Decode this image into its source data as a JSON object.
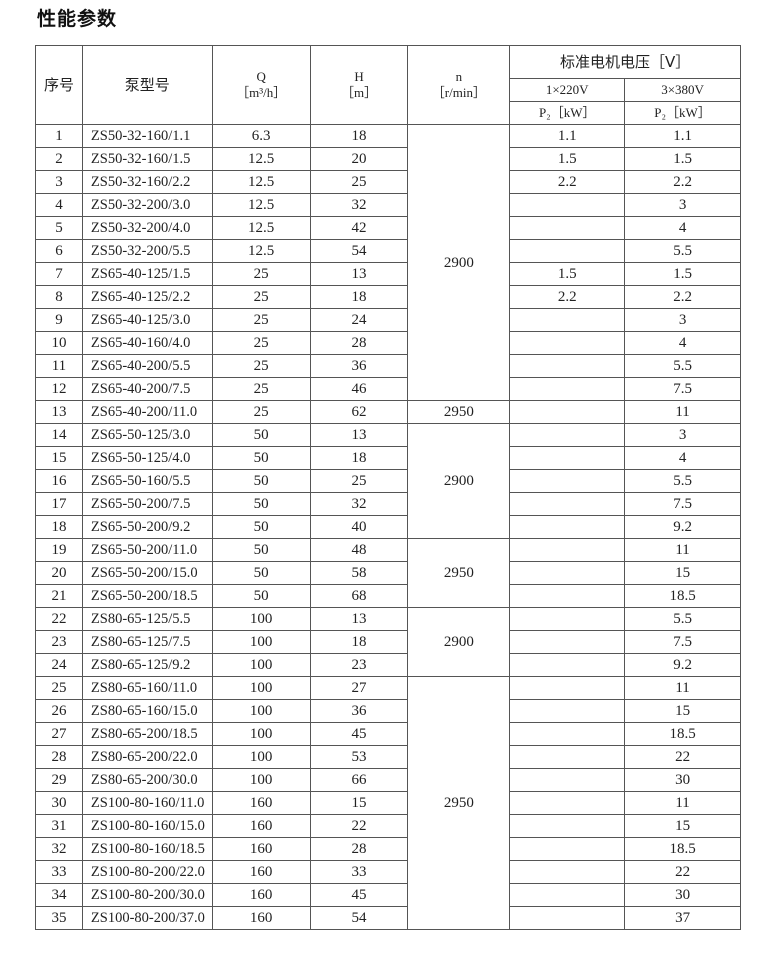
{
  "title": "性能参数",
  "headers": {
    "seq": "序号",
    "model": "泵型号",
    "q": "Q",
    "q_unit": "［m³/h］",
    "h": "H",
    "h_unit": "［m］",
    "n": "n",
    "n_unit": "［r/min］",
    "voltage": "标准电机电压［V］",
    "v1": "1×220V",
    "v3": "3×380V",
    "p1": "P₂［kW］",
    "p3": "P₂［kW］"
  },
  "n_groups": [
    {
      "value": "2900",
      "rows": 12
    },
    {
      "value": "2950",
      "rows": 1
    },
    {
      "value": "2900",
      "rows": 5
    },
    {
      "value": "2950",
      "rows": 3
    },
    {
      "value": "2900",
      "rows": 3
    },
    {
      "value": "2950",
      "rows": 11
    }
  ],
  "rows": [
    [
      "1",
      "ZS50-32-160/1.1",
      "6.3",
      "18",
      "1.1",
      "1.1"
    ],
    [
      "2",
      "ZS50-32-160/1.5",
      "12.5",
      "20",
      "1.5",
      "1.5"
    ],
    [
      "3",
      "ZS50-32-160/2.2",
      "12.5",
      "25",
      "2.2",
      "2.2"
    ],
    [
      "4",
      "ZS50-32-200/3.0",
      "12.5",
      "32",
      "",
      "3"
    ],
    [
      "5",
      "ZS50-32-200/4.0",
      "12.5",
      "42",
      "",
      "4"
    ],
    [
      "6",
      "ZS50-32-200/5.5",
      "12.5",
      "54",
      "",
      "5.5"
    ],
    [
      "7",
      "ZS65-40-125/1.5",
      "25",
      "13",
      "1.5",
      "1.5"
    ],
    [
      "8",
      "ZS65-40-125/2.2",
      "25",
      "18",
      "2.2",
      "2.2"
    ],
    [
      "9",
      "ZS65-40-125/3.0",
      "25",
      "24",
      "",
      "3"
    ],
    [
      "10",
      "ZS65-40-160/4.0",
      "25",
      "28",
      "",
      "4"
    ],
    [
      "11",
      "ZS65-40-200/5.5",
      "25",
      "36",
      "",
      "5.5"
    ],
    [
      "12",
      "ZS65-40-200/7.5",
      "25",
      "46",
      "",
      "7.5"
    ],
    [
      "13",
      "ZS65-40-200/11.0",
      "25",
      "62",
      "",
      "11"
    ],
    [
      "14",
      "ZS65-50-125/3.0",
      "50",
      "13",
      "",
      "3"
    ],
    [
      "15",
      "ZS65-50-125/4.0",
      "50",
      "18",
      "",
      "4"
    ],
    [
      "16",
      "ZS65-50-160/5.5",
      "50",
      "25",
      "",
      "5.5"
    ],
    [
      "17",
      "ZS65-50-200/7.5",
      "50",
      "32",
      "",
      "7.5"
    ],
    [
      "18",
      "ZS65-50-200/9.2",
      "50",
      "40",
      "",
      "9.2"
    ],
    [
      "19",
      "ZS65-50-200/11.0",
      "50",
      "48",
      "",
      "11"
    ],
    [
      "20",
      "ZS65-50-200/15.0",
      "50",
      "58",
      "",
      "15"
    ],
    [
      "21",
      "ZS65-50-200/18.5",
      "50",
      "68",
      "",
      "18.5"
    ],
    [
      "22",
      "ZS80-65-125/5.5",
      "100",
      "13",
      "",
      "5.5"
    ],
    [
      "23",
      "ZS80-65-125/7.5",
      "100",
      "18",
      "",
      "7.5"
    ],
    [
      "24",
      "ZS80-65-125/9.2",
      "100",
      "23",
      "",
      "9.2"
    ],
    [
      "25",
      "ZS80-65-160/11.0",
      "100",
      "27",
      "",
      "11"
    ],
    [
      "26",
      "ZS80-65-160/15.0",
      "100",
      "36",
      "",
      "15"
    ],
    [
      "27",
      "ZS80-65-200/18.5",
      "100",
      "45",
      "",
      "18.5"
    ],
    [
      "28",
      "ZS80-65-200/22.0",
      "100",
      "53",
      "",
      "22"
    ],
    [
      "29",
      "ZS80-65-200/30.0",
      "100",
      "66",
      "",
      "30"
    ],
    [
      "30",
      "ZS100-80-160/11.0",
      "160",
      "15",
      "",
      "11"
    ],
    [
      "31",
      "ZS100-80-160/15.0",
      "160",
      "22",
      "",
      "15"
    ],
    [
      "32",
      "ZS100-80-160/18.5",
      "160",
      "28",
      "",
      "18.5"
    ],
    [
      "33",
      "ZS100-80-200/22.0",
      "160",
      "33",
      "",
      "22"
    ],
    [
      "34",
      "ZS100-80-200/30.0",
      "160",
      "45",
      "",
      "30"
    ],
    [
      "35",
      "ZS100-80-200/37.0",
      "160",
      "54",
      "",
      "37"
    ]
  ]
}
